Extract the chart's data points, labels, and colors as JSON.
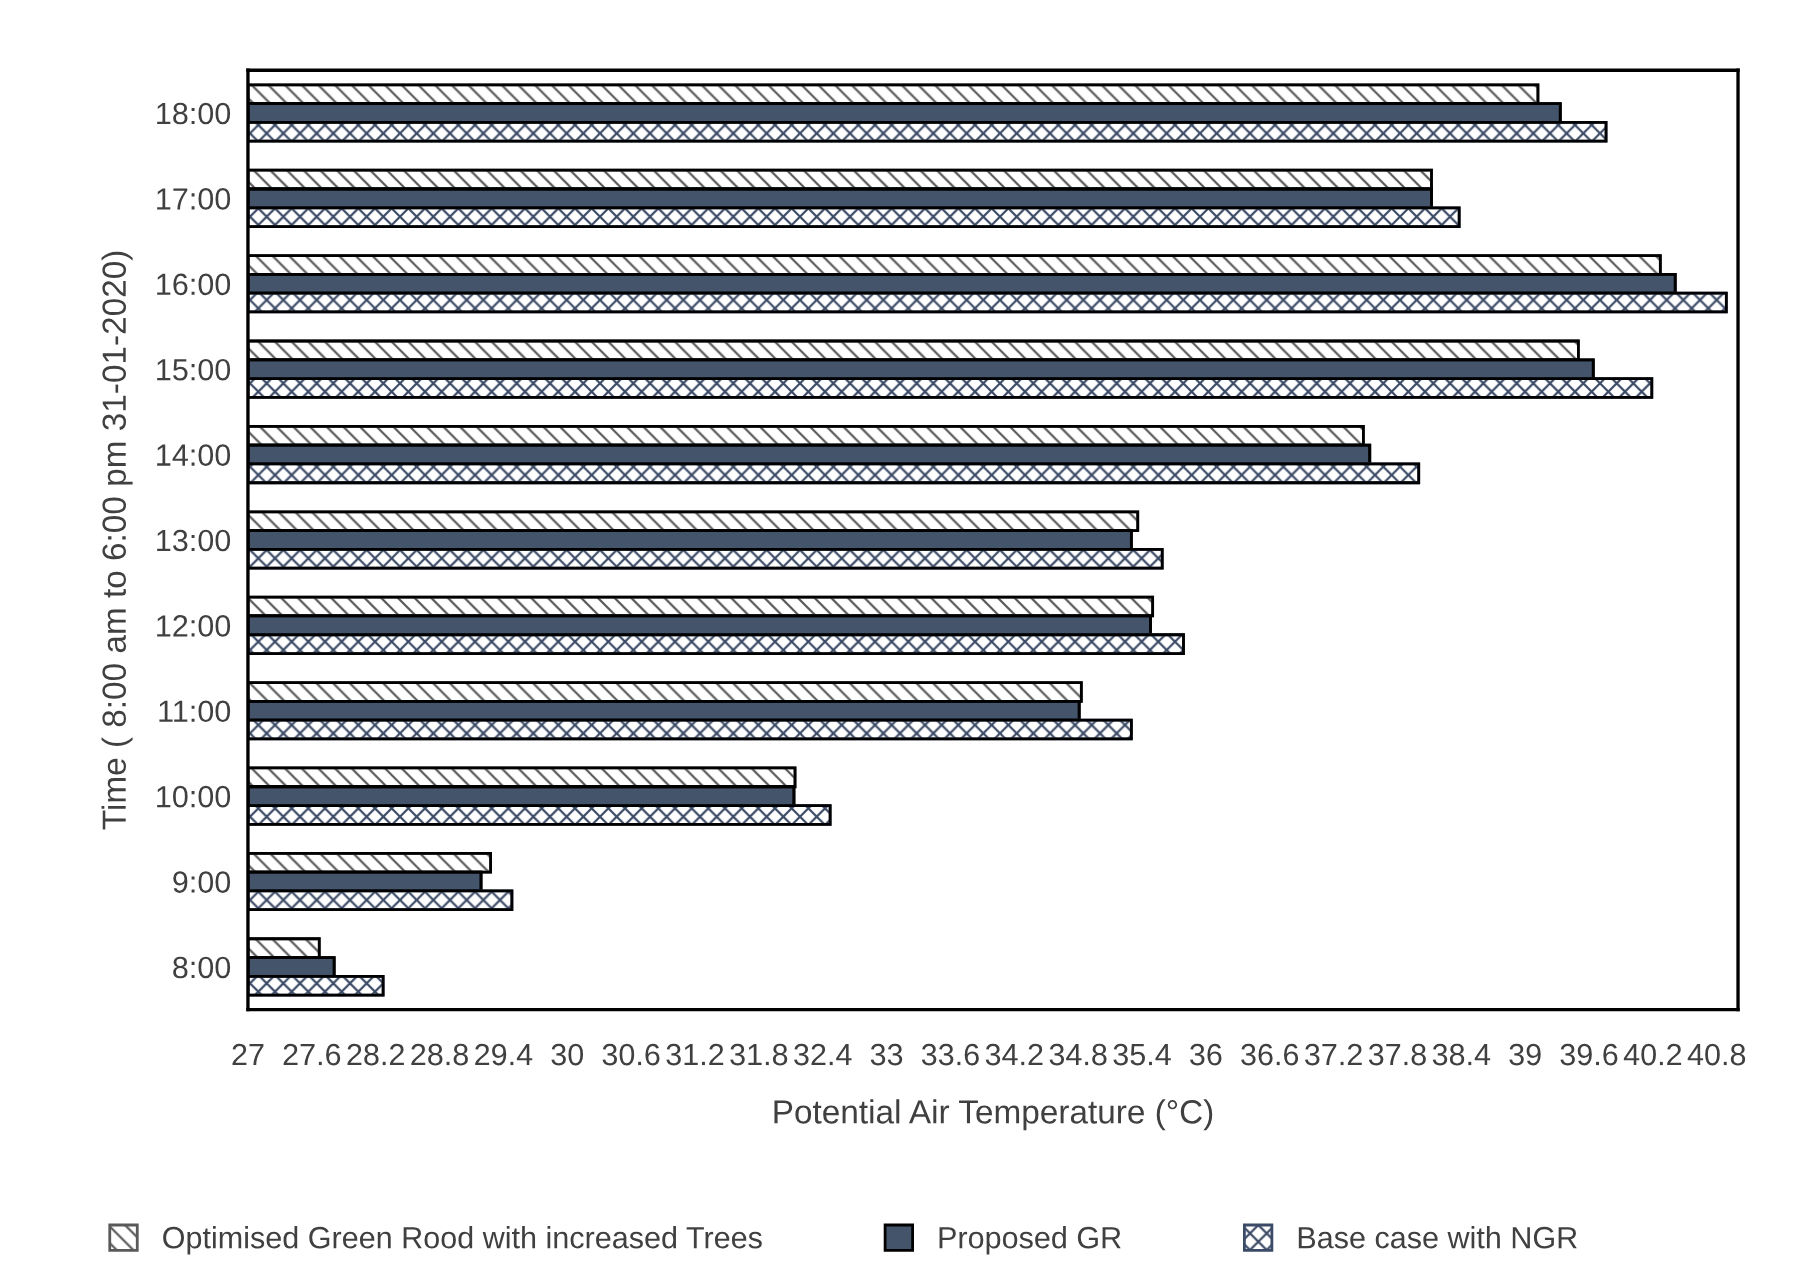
{
  "chart_data": {
    "type": "bar",
    "orientation": "horizontal",
    "xlabel": "Potential Air Temperature (°C)",
    "ylabel": "Time ( 8:00 am to 6:00 pm 31-01-2020)",
    "categories": [
      "18:00",
      "17:00",
      "16:00",
      "15:00",
      "14:00",
      "13:00",
      "12:00",
      "11:00",
      "10:00",
      "9:00",
      "8:00"
    ],
    "series": [
      {
        "name": "Optimised Green Rood with increased Trees",
        "color": "#595959",
        "values": [
          39.12,
          38.12,
          40.27,
          39.5,
          37.48,
          35.36,
          35.5,
          34.83,
          32.14,
          29.28,
          27.67
        ]
      },
      {
        "name": "Proposed GR",
        "color": "#44546a",
        "values": [
          39.33,
          38.12,
          40.41,
          39.64,
          37.54,
          35.3,
          35.48,
          34.81,
          32.13,
          29.19,
          27.81
        ]
      },
      {
        "name": "Base case with NGR",
        "color": "#3b4a66",
        "values": [
          39.76,
          38.38,
          40.89,
          40.19,
          38.0,
          35.59,
          35.79,
          35.3,
          32.47,
          29.48,
          28.27
        ]
      }
    ],
    "xlim": [
      27,
      41
    ],
    "xticks": [
      27,
      27.6,
      28.2,
      28.8,
      29.4,
      30,
      30.6,
      31.2,
      31.8,
      32.4,
      33,
      33.6,
      34.2,
      34.8,
      35.4,
      36,
      36.6,
      37.2,
      37.8,
      38.4,
      39,
      39.6,
      40.2,
      40.8
    ],
    "grid": false,
    "legend": "bottom"
  }
}
